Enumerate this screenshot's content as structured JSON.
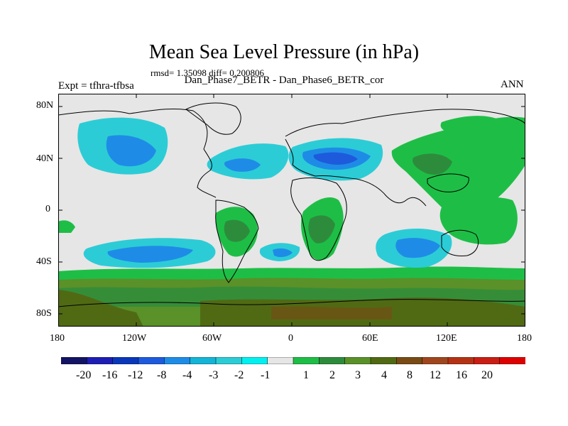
{
  "title": "Mean Sea Level Pressure (in hPa)",
  "stats": "rmsd= 1.35098 diff= 0.200806",
  "subtitle": "Dan_Phase7_BETR - Dan_Phase6_BETR_cor",
  "left_label": "Expt = tfhra-tfbsa",
  "right_label": "ANN",
  "lat_ticks": [
    "80N",
    "40N",
    "0",
    "40S",
    "80S"
  ],
  "lon_ticks": [
    "180",
    "120W",
    "60W",
    "0",
    "60E",
    "120E",
    "180"
  ],
  "colorbar": {
    "colors": [
      "#141464",
      "#1e1eb4",
      "#0a37b9",
      "#1e5adc",
      "#1e8ce6",
      "#14b4d7",
      "#2cccd6",
      "#00f0f0",
      "#e6e6e6",
      "#1ebe46",
      "#2d8c3c",
      "#5a9128",
      "#506a14",
      "#784b14",
      "#a0461e",
      "#b43214",
      "#c81e14",
      "#dc0000"
    ],
    "labels": [
      "-20",
      "-16",
      "-12",
      "-8",
      "-4",
      "-3",
      "-2",
      "-1",
      "1",
      "2",
      "3",
      "4",
      "8",
      "12",
      "16",
      "20"
    ]
  },
  "map_colors": {
    "background": "#e6e6e6",
    "lightblue": "#2cccd6",
    "blue": "#1e8ce6",
    "darkblue": "#1e5adc",
    "green": "#1ebe46",
    "midgreen": "#2d8c3c",
    "olive": "#5a9128",
    "brown": "#784b14",
    "coast": "#000000"
  }
}
